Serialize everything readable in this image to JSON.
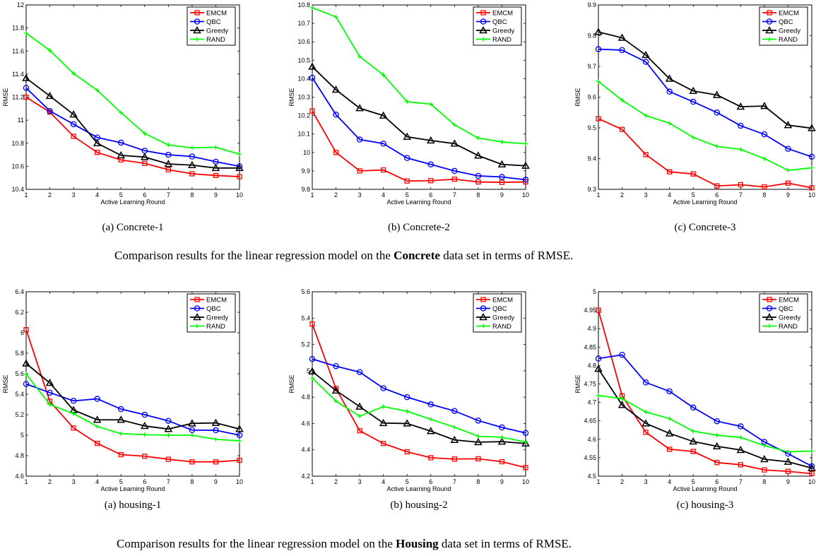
{
  "colors": {
    "EMCM": "#ff0000",
    "QBC": "#0000ff",
    "Greedy": "#000000",
    "RAND": "#00ff00"
  },
  "markers": {
    "EMCM": "square",
    "QBC": "circle",
    "Greedy": "triangle",
    "RAND": "plus"
  },
  "captions": [
    {
      "prefix": "Comparison results for the linear regression model on the ",
      "bold": "Concrete",
      "suffix": " data set in terms of RMSE."
    },
    {
      "prefix": "Comparison results for the linear regression model on the ",
      "bold": "Housing",
      "suffix": " data set in terms of RMSE."
    }
  ],
  "chart_data": [
    {
      "type": "line",
      "subcaption": "(a) Concrete-1",
      "xlabel": "Active Learning Round",
      "ylabel": "RMSE",
      "x": [
        1,
        2,
        3,
        4,
        5,
        6,
        7,
        8,
        9,
        10
      ],
      "xlim": [
        1,
        10
      ],
      "ylim": [
        10.4,
        12
      ],
      "yticks": [
        "10.4",
        "10.6",
        "10.8",
        "11",
        "11.2",
        "11.4",
        "11.6",
        "11.8",
        "12"
      ],
      "legend": "top-right",
      "grid": false,
      "series": [
        {
          "name": "EMCM",
          "values": [
            11.2,
            11.07,
            10.86,
            10.72,
            10.655,
            10.625,
            10.57,
            10.535,
            10.52,
            10.51
          ]
        },
        {
          "name": "QBC",
          "values": [
            11.28,
            11.08,
            10.965,
            10.85,
            10.805,
            10.735,
            10.7,
            10.685,
            10.64,
            10.6
          ]
        },
        {
          "name": "Greedy",
          "values": [
            11.365,
            11.21,
            11.05,
            10.8,
            10.695,
            10.68,
            10.62,
            10.61,
            10.585,
            10.585
          ]
        },
        {
          "name": "RAND",
          "values": [
            11.755,
            11.605,
            11.405,
            11.26,
            11.065,
            10.885,
            10.785,
            10.76,
            10.765,
            10.705
          ]
        }
      ]
    },
    {
      "type": "line",
      "subcaption": "(b) Concrete-2",
      "xlabel": "Active Learning Round",
      "ylabel": "RMSE",
      "x": [
        1,
        2,
        3,
        4,
        5,
        6,
        7,
        8,
        9,
        10
      ],
      "xlim": [
        1,
        10
      ],
      "ylim": [
        9.8,
        10.8
      ],
      "yticks": [
        "9.8",
        "9.9",
        "10",
        "10.1",
        "10.2",
        "10.3",
        "10.4",
        "10.5",
        "10.6",
        "10.7",
        "10.8"
      ],
      "legend": "top-right",
      "grid": false,
      "series": [
        {
          "name": "EMCM",
          "values": [
            10.225,
            10.0,
            9.9,
            9.905,
            9.845,
            9.847,
            9.855,
            9.84,
            9.838,
            9.84
          ]
        },
        {
          "name": "QBC",
          "values": [
            10.405,
            10.205,
            10.07,
            10.048,
            9.97,
            9.935,
            9.9,
            9.873,
            9.867,
            9.852
          ]
        },
        {
          "name": "Greedy",
          "values": [
            10.465,
            10.34,
            10.24,
            10.2,
            10.085,
            10.065,
            10.048,
            9.983,
            9.935,
            9.928
          ]
        },
        {
          "name": "RAND",
          "values": [
            10.785,
            10.735,
            10.52,
            10.42,
            10.275,
            10.262,
            10.15,
            10.078,
            10.057,
            10.047
          ]
        }
      ]
    },
    {
      "type": "line",
      "subcaption": "(c) Concrete-3",
      "xlabel": "Active Learning Round",
      "ylabel": "RMSE",
      "x": [
        1,
        2,
        3,
        4,
        5,
        6,
        7,
        8,
        9,
        10
      ],
      "xlim": [
        1,
        10
      ],
      "ylim": [
        9.3,
        9.9
      ],
      "yticks": [
        "9.3",
        "9.4",
        "9.5",
        "9.6",
        "9.7",
        "9.8",
        "9.9"
      ],
      "legend": "top-right",
      "grid": false,
      "series": [
        {
          "name": "EMCM",
          "values": [
            9.53,
            9.495,
            9.413,
            9.357,
            9.35,
            9.311,
            9.315,
            9.308,
            9.32,
            9.305
          ]
        },
        {
          "name": "QBC",
          "values": [
            9.756,
            9.753,
            9.715,
            9.618,
            9.585,
            9.55,
            9.507,
            9.479,
            9.432,
            9.406
          ]
        },
        {
          "name": "Greedy",
          "values": [
            9.812,
            9.793,
            9.737,
            9.66,
            9.62,
            9.607,
            9.569,
            9.571,
            9.509,
            9.499
          ]
        },
        {
          "name": "RAND",
          "values": [
            9.651,
            9.59,
            9.54,
            9.515,
            9.469,
            9.44,
            9.43,
            9.4,
            9.362,
            9.37
          ]
        }
      ]
    },
    {
      "type": "line",
      "subcaption": "(a) housing-1",
      "xlabel": "Active Learning Round",
      "ylabel": "RMSE",
      "x": [
        1,
        2,
        3,
        4,
        5,
        6,
        7,
        8,
        9,
        10
      ],
      "xlim": [
        1,
        10
      ],
      "ylim": [
        4.6,
        6.4
      ],
      "yticks": [
        "4.6",
        "4.8",
        "5",
        "5.2",
        "5.4",
        "5.6",
        "5.8",
        "6",
        "6.2",
        "6.4"
      ],
      "legend": "top-right",
      "grid": false,
      "series": [
        {
          "name": "EMCM",
          "values": [
            6.03,
            5.33,
            5.07,
            4.92,
            4.81,
            4.795,
            4.765,
            4.74,
            4.74,
            4.755
          ]
        },
        {
          "name": "QBC",
          "values": [
            5.5,
            5.415,
            5.335,
            5.355,
            5.255,
            5.2,
            5.14,
            5.05,
            5.048,
            5.0
          ]
        },
        {
          "name": "Greedy",
          "values": [
            5.7,
            5.51,
            5.245,
            5.15,
            5.15,
            5.09,
            5.06,
            5.115,
            5.12,
            5.06
          ]
        },
        {
          "name": "RAND",
          "values": [
            5.595,
            5.3,
            5.21,
            5.085,
            5.015,
            5.005,
            5.0,
            5.0,
            4.96,
            4.945
          ]
        }
      ]
    },
    {
      "type": "line",
      "subcaption": "(b) housing-2",
      "xlabel": "Active Learning Round",
      "ylabel": "RMSE",
      "x": [
        1,
        2,
        3,
        4,
        5,
        6,
        7,
        8,
        9,
        10
      ],
      "xlim": [
        1,
        10
      ],
      "ylim": [
        4.2,
        5.6
      ],
      "yticks": [
        "4.2",
        "4.4",
        "4.6",
        "4.8",
        "5",
        "5.2",
        "5.4",
        "5.6"
      ],
      "legend": "top-right",
      "grid": false,
      "series": [
        {
          "name": "EMCM",
          "values": [
            5.355,
            4.865,
            4.545,
            4.448,
            4.385,
            4.34,
            4.33,
            4.332,
            4.31,
            4.265
          ]
        },
        {
          "name": "QBC",
          "values": [
            5.09,
            5.035,
            4.99,
            4.868,
            4.8,
            4.745,
            4.695,
            4.622,
            4.57,
            4.528
          ]
        },
        {
          "name": "Greedy",
          "values": [
            4.995,
            4.85,
            4.728,
            4.603,
            4.6,
            4.542,
            4.475,
            4.458,
            4.462,
            4.448
          ]
        },
        {
          "name": "RAND",
          "values": [
            4.945,
            4.77,
            4.655,
            4.728,
            4.693,
            4.632,
            4.572,
            4.503,
            4.495,
            4.46
          ]
        }
      ]
    },
    {
      "type": "line",
      "subcaption": "(c) housing-3",
      "xlabel": "Active Learning Round",
      "ylabel": "RMSE",
      "x": [
        1,
        2,
        3,
        4,
        5,
        6,
        7,
        8,
        9,
        10
      ],
      "xlim": [
        1,
        10
      ],
      "ylim": [
        4.5,
        5
      ],
      "yticks": [
        "4.5",
        "4.55",
        "4.6",
        "4.65",
        "4.7",
        "4.75",
        "4.8",
        "4.85",
        "4.9",
        "4.95",
        "5"
      ],
      "legend": "top-right",
      "grid": false,
      "series": [
        {
          "name": "EMCM",
          "values": [
            4.95,
            4.718,
            4.619,
            4.573,
            4.567,
            4.537,
            4.531,
            4.517,
            4.513,
            4.507
          ]
        },
        {
          "name": "QBC",
          "values": [
            4.819,
            4.829,
            4.754,
            4.73,
            4.686,
            4.649,
            4.635,
            4.593,
            4.561,
            4.527
          ]
        },
        {
          "name": "Greedy",
          "values": [
            4.791,
            4.693,
            4.643,
            4.616,
            4.594,
            4.581,
            4.571,
            4.546,
            4.539,
            4.522
          ]
        },
        {
          "name": "RAND",
          "values": [
            4.719,
            4.71,
            4.674,
            4.656,
            4.622,
            4.611,
            4.605,
            4.583,
            4.566,
            4.568
          ]
        }
      ]
    }
  ]
}
